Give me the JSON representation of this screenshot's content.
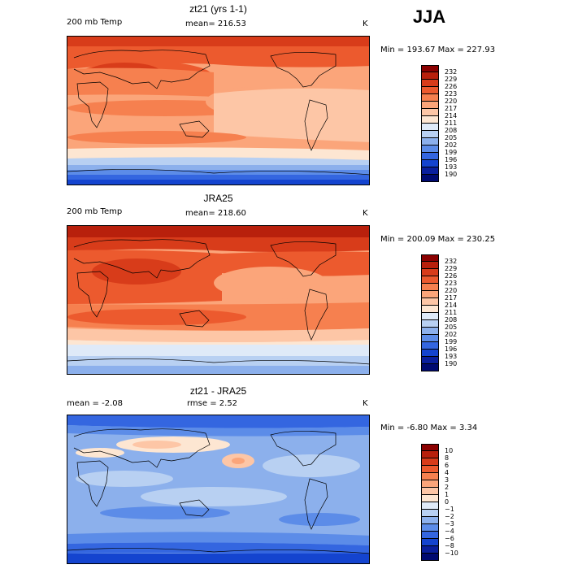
{
  "season": "JJA",
  "panels": [
    {
      "title": "zt21 (yrs 1-1)",
      "left_label": "200 mb Temp",
      "mean_label": "mean= 216.53",
      "units": "K",
      "min_max": "Min = 193.67 Max = 227.93",
      "colorbar": [
        "232",
        "229",
        "226",
        "223",
        "220",
        "217",
        "214",
        "211",
        "208",
        "205",
        "202",
        "199",
        "196",
        "193",
        "190"
      ]
    },
    {
      "title": "JRA25",
      "left_label": "200 mb Temp",
      "mean_label": "mean= 218.60",
      "units": "K",
      "min_max": "Min = 200.09 Max = 230.25",
      "colorbar": [
        "232",
        "229",
        "226",
        "223",
        "220",
        "217",
        "214",
        "211",
        "208",
        "205",
        "202",
        "199",
        "196",
        "193",
        "190"
      ]
    },
    {
      "title": "zt21 - JRA25",
      "left_label": "mean =  -2.08",
      "mean_label": "rmse =   2.52",
      "units": "K",
      "min_max": "Min =  -6.80 Max =   3.34",
      "colorbar": [
        "10",
        "8",
        "6",
        "4",
        "3",
        "2",
        "1",
        "0",
        "−1",
        "−2",
        "−3",
        "−4",
        "−6",
        "−8",
        "−10"
      ]
    }
  ],
  "colors": {
    "scale": [
      "#8b0000",
      "#b8200c",
      "#d83c1a",
      "#ec5a2e",
      "#f6804f",
      "#fba57a",
      "#fdc6a6",
      "#fde6d2",
      "#dfeaf8",
      "#b8d0f2",
      "#8cb0ec",
      "#5c8ce8",
      "#3466e0",
      "#1444cf",
      "#0a1f9c",
      "#000a70"
    ]
  }
}
